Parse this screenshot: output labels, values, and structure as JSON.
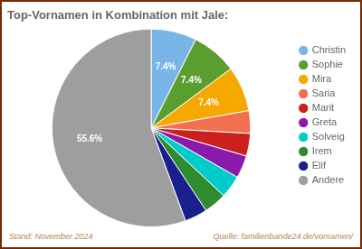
{
  "chart_data": {
    "type": "pie",
    "title": "Top-Vornamen in Kombination mit Jale:",
    "categories": [
      "Christin",
      "Sophie",
      "Mira",
      "Saria",
      "Marit",
      "Greta",
      "Solveig",
      "Irem",
      "Elif",
      "Andere"
    ],
    "values": [
      7.4,
      7.4,
      7.4,
      3.7,
      3.7,
      3.7,
      3.7,
      3.7,
      3.7,
      55.6
    ],
    "colors": [
      "#7ab5e8",
      "#5a9e2f",
      "#f5a800",
      "#f07050",
      "#cc1f1f",
      "#8b1aaa",
      "#00cccc",
      "#2e8b2e",
      "#1a1f8e",
      "#9e9e9e"
    ],
    "data_labels": true,
    "value_labels": [
      "7.4%",
      "7.4%",
      "7.4%",
      null,
      null,
      null,
      null,
      null,
      null,
      "55.6%"
    ],
    "legend": "right",
    "annotations": [
      "Stand: November 2024",
      "Quelle: familienbande24.de/vornamen/"
    ]
  }
}
